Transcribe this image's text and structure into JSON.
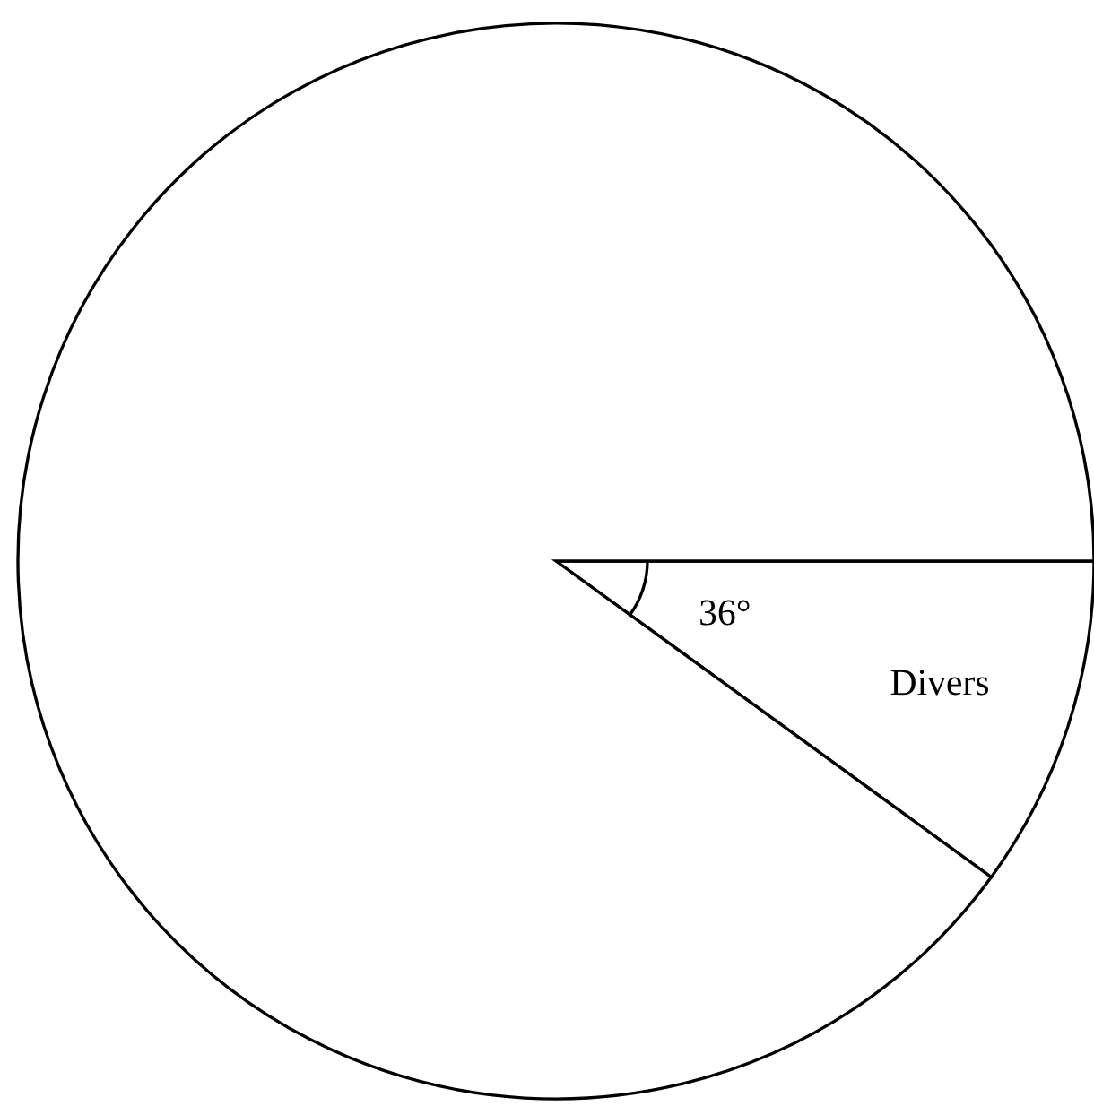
{
  "chart_data": {
    "type": "pie",
    "categories": [
      "Divers",
      null
    ],
    "values": [
      10,
      90
    ],
    "colors": [
      "#ffffff",
      "#ffffff"
    ],
    "annotations": [
      "36°"
    ]
  }
}
